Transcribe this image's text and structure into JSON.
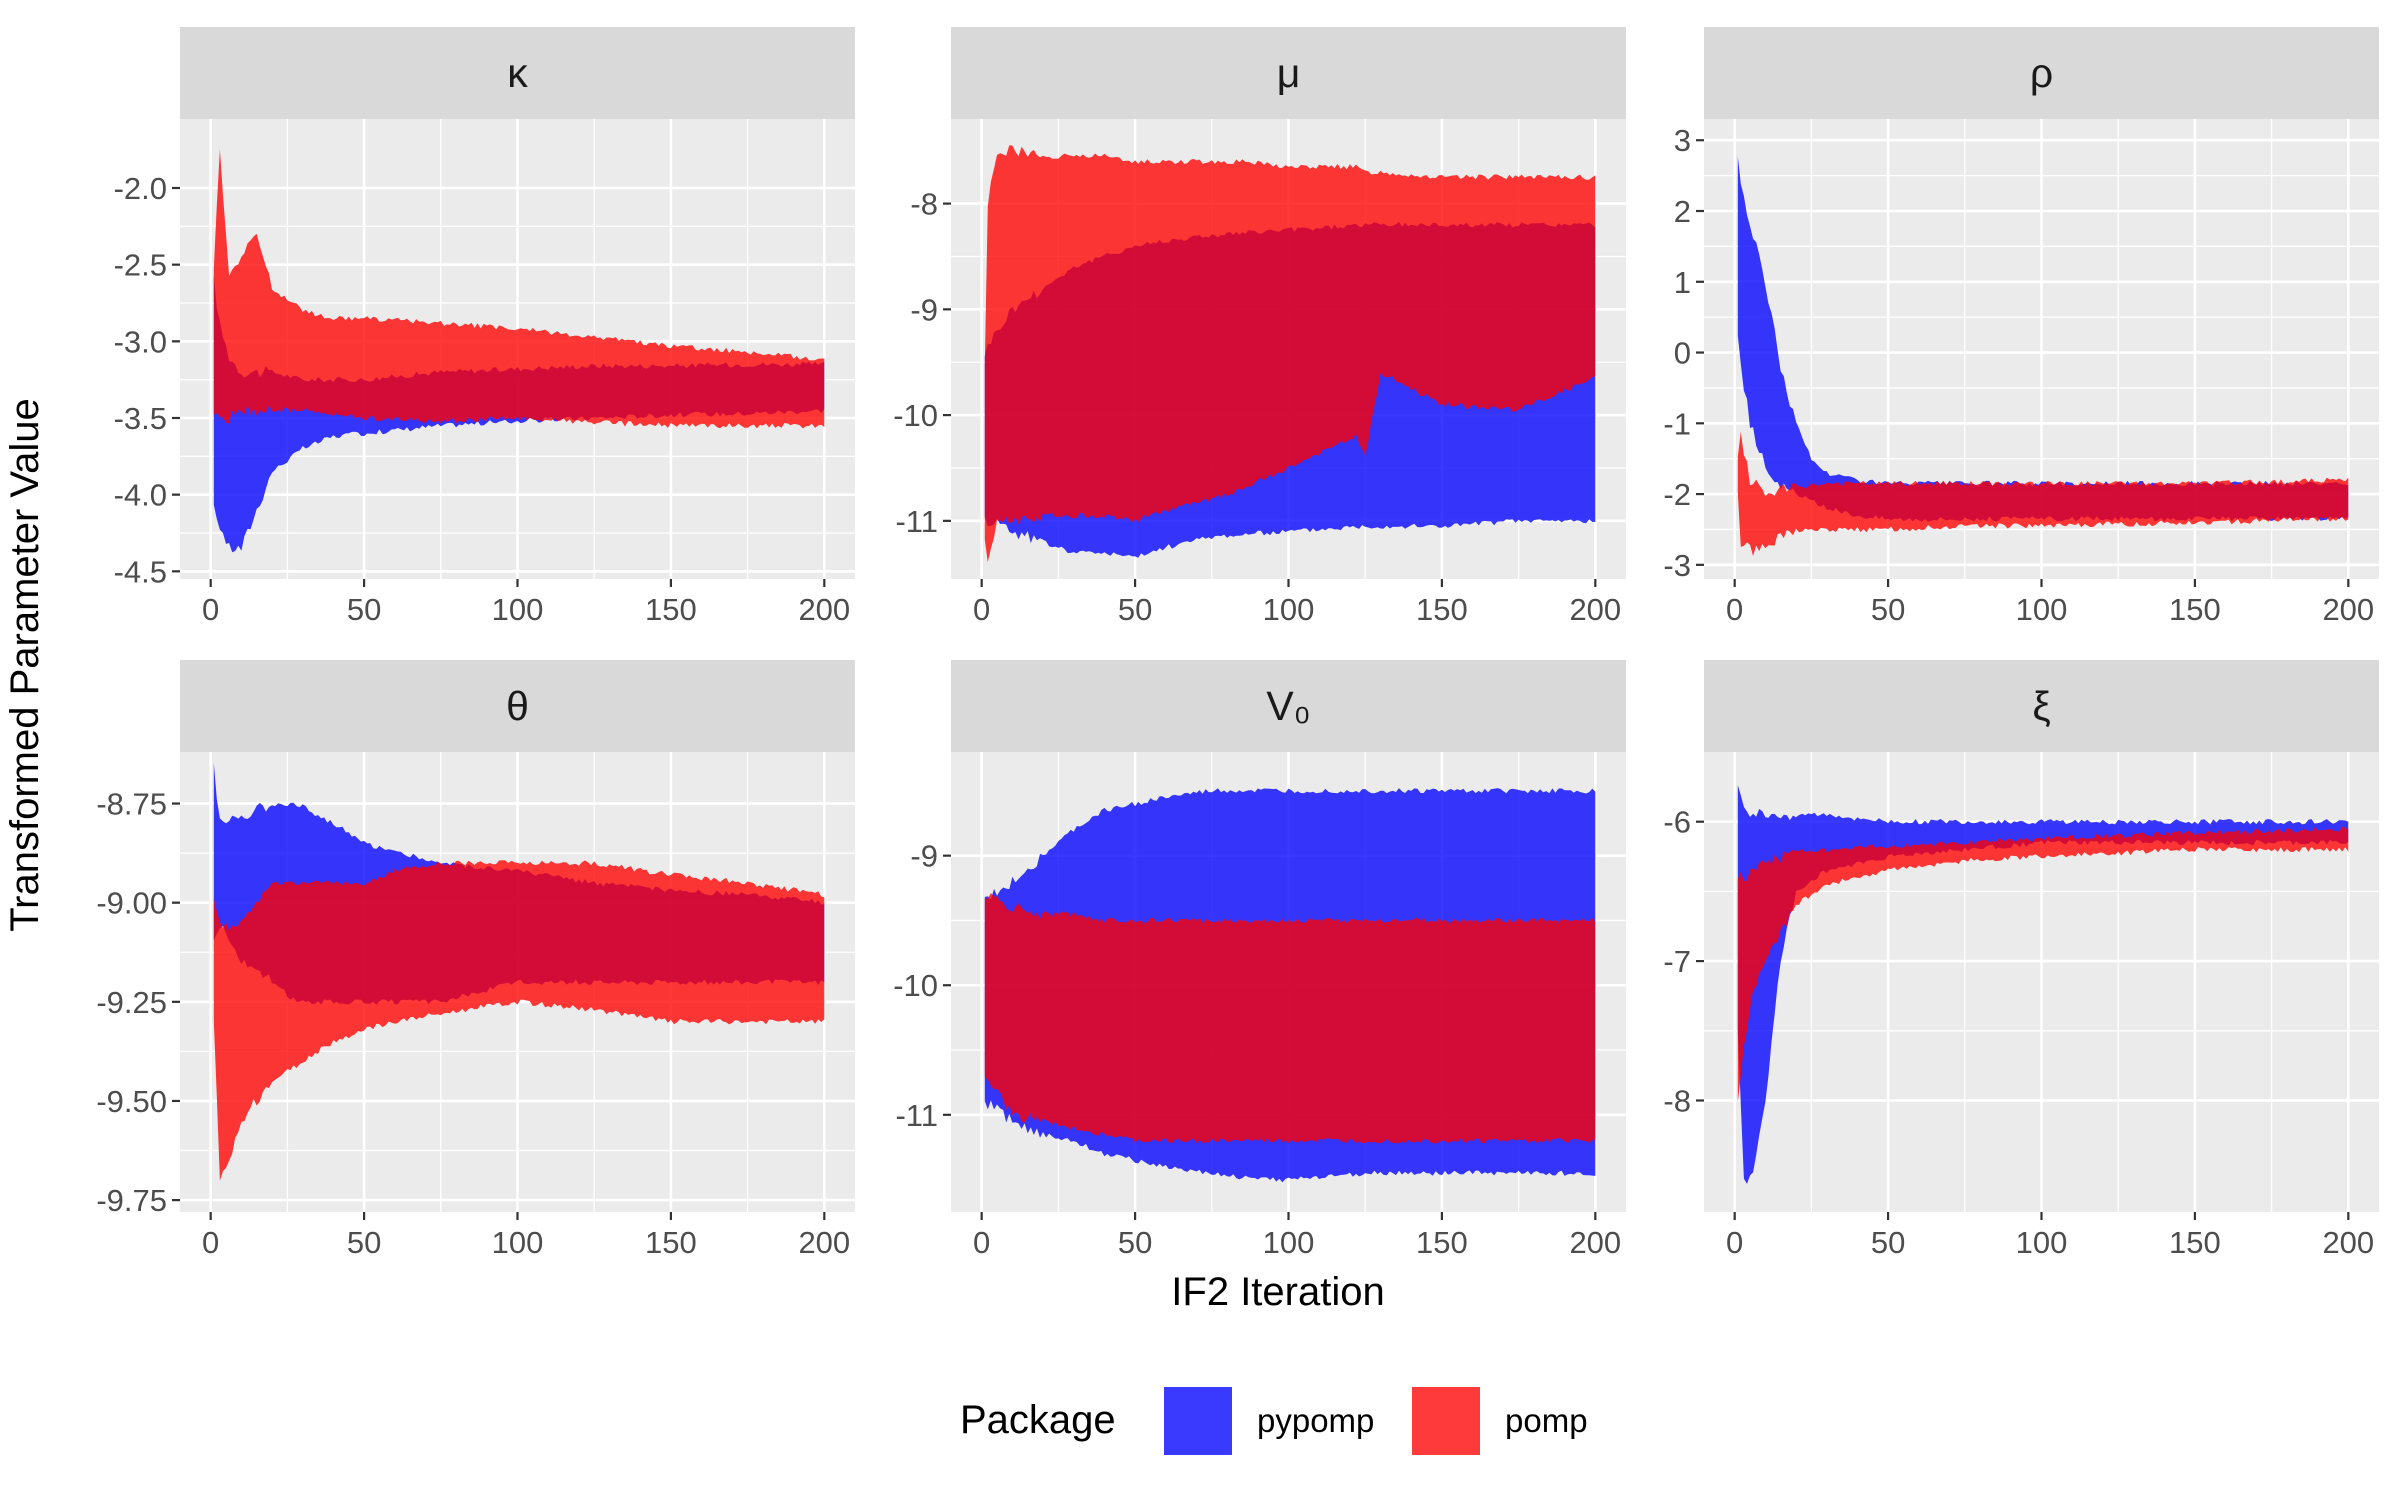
{
  "chart_data": {
    "type": "area",
    "xlabel": "IF2 Iteration",
    "ylabel": "Transformed Parameter Value",
    "legend": {
      "title": "Package",
      "position": "bottom",
      "entries": [
        {
          "label": "pypomp",
          "color": "#0000ff"
        },
        {
          "label": "pomp",
          "color": "#ff0000"
        }
      ]
    },
    "colors": {
      "pypomp": "#2626ff",
      "pomp": "#ff2626",
      "overlap": "#ad125c"
    },
    "grid": true,
    "panels": [
      {
        "strip": "κ",
        "xlim": [
          -10,
          210
        ],
        "ylim": [
          -4.55,
          -1.55
        ],
        "xticks": [
          0,
          50,
          100,
          150,
          200
        ],
        "xtick_labels": [
          "0",
          "50",
          "100",
          "150",
          "200"
        ],
        "yticks": [
          -4.5,
          -4.0,
          -3.5,
          -3.0,
          -2.5,
          -2.0
        ],
        "ytick_labels": [
          "-4.5",
          "-4.0",
          "-3.5",
          "-3.0",
          "-2.5",
          "-2.0"
        ],
        "series": [
          {
            "name": "pypomp",
            "x": [
              1,
              3,
              6,
              10,
              15,
              20,
              30,
              40,
              50,
              75,
              100,
              125,
              150,
              175,
              200
            ],
            "lower": [
              -4.1,
              -4.2,
              -4.35,
              -4.35,
              -4.1,
              -3.85,
              -3.7,
              -3.62,
              -3.6,
              -3.55,
              -3.52,
              -3.5,
              -3.48,
              -3.47,
              -3.45
            ],
            "upper": [
              -2.6,
              -2.9,
              -3.1,
              -3.2,
              -3.2,
              -3.2,
              -3.25,
              -3.25,
              -3.25,
              -3.2,
              -3.18,
              -3.16,
              -3.16,
              -3.15,
              -3.15
            ]
          },
          {
            "name": "pomp",
            "x": [
              1,
              3,
              6,
              10,
              15,
              20,
              30,
              40,
              50,
              75,
              100,
              125,
              150,
              175,
              200
            ],
            "lower": [
              -3.5,
              -3.5,
              -3.5,
              -3.45,
              -3.45,
              -3.45,
              -3.45,
              -3.48,
              -3.5,
              -3.52,
              -3.5,
              -3.53,
              -3.55,
              -3.55,
              -3.55
            ],
            "upper": [
              -2.5,
              -1.75,
              -2.55,
              -2.45,
              -2.3,
              -2.65,
              -2.8,
              -2.85,
              -2.85,
              -2.88,
              -2.92,
              -2.97,
              -3.03,
              -3.07,
              -3.12
            ]
          }
        ]
      },
      {
        "strip": "μ",
        "xlim": [
          -10,
          210
        ],
        "ylim": [
          -11.55,
          -7.2
        ],
        "xticks": [
          0,
          50,
          100,
          150,
          200
        ],
        "xtick_labels": [
          "0",
          "50",
          "100",
          "150",
          "200"
        ],
        "yticks": [
          -11,
          -10,
          -9,
          -8
        ],
        "ytick_labels": [
          "-11",
          "-10",
          "-9",
          "-8"
        ],
        "series": [
          {
            "name": "pypomp",
            "x": [
              1,
              5,
              10,
              20,
              30,
              40,
              50,
              60,
              75,
              100,
              125,
              150,
              175,
              200
            ],
            "lower": [
              -11.0,
              -11.0,
              -11.1,
              -11.2,
              -11.3,
              -11.3,
              -11.35,
              -11.25,
              -11.15,
              -11.1,
              -11.05,
              -11.05,
              -11.0,
              -11.0
            ],
            "upper": [
              -9.4,
              -9.2,
              -9.0,
              -8.8,
              -8.6,
              -8.5,
              -8.4,
              -8.35,
              -8.3,
              -8.25,
              -8.2,
              -8.2,
              -8.2,
              -8.2
            ]
          },
          {
            "name": "pomp",
            "x": [
              1,
              2,
              5,
              10,
              20,
              30,
              40,
              50,
              60,
              75,
              85,
              100,
              115,
              122,
              125,
              130,
              150,
              175,
              200
            ],
            "lower": [
              -11.2,
              -11.4,
              -11.0,
              -11.0,
              -10.95,
              -10.95,
              -10.95,
              -11.0,
              -10.9,
              -10.8,
              -10.7,
              -10.5,
              -10.3,
              -10.2,
              -10.4,
              -9.6,
              -9.9,
              -9.95,
              -9.65
            ],
            "upper": [
              -9.5,
              -8.0,
              -7.5,
              -7.5,
              -7.55,
              -7.55,
              -7.55,
              -7.6,
              -7.6,
              -7.6,
              -7.6,
              -7.65,
              -7.65,
              -7.65,
              -7.7,
              -7.7,
              -7.75,
              -7.75,
              -7.75
            ]
          }
        ]
      },
      {
        "strip": "ρ",
        "xlim": [
          -10,
          210
        ],
        "ylim": [
          -3.2,
          3.3
        ],
        "xticks": [
          0,
          50,
          100,
          150,
          200
        ],
        "xtick_labels": [
          "0",
          "50",
          "100",
          "150",
          "200"
        ],
        "yticks": [
          -3,
          -2,
          -1,
          0,
          1,
          2,
          3
        ],
        "ytick_labels": [
          "-3",
          "-2",
          "-1",
          "0",
          "1",
          "2",
          "3"
        ],
        "series": [
          {
            "name": "pypomp",
            "x": [
              1,
              2,
              5,
              10,
              15,
              20,
              25,
              30,
              40,
              50,
              75,
              100,
              150,
              200
            ],
            "lower": [
              0.2,
              -0.2,
              -1.0,
              -1.6,
              -1.9,
              -2.0,
              -2.1,
              -2.2,
              -2.3,
              -2.35,
              -2.35,
              -2.35,
              -2.35,
              -2.35
            ],
            "upper": [
              2.8,
              2.4,
              1.8,
              1.0,
              -0.2,
              -1.0,
              -1.5,
              -1.7,
              -1.8,
              -1.85,
              -1.85,
              -1.85,
              -1.85,
              -1.85
            ]
          },
          {
            "name": "pomp",
            "x": [
              1,
              2,
              5,
              10,
              15,
              20,
              30,
              40,
              50,
              75,
              100,
              150,
              200
            ],
            "lower": [
              -2.0,
              -2.7,
              -2.8,
              -2.75,
              -2.6,
              -2.5,
              -2.5,
              -2.5,
              -2.5,
              -2.45,
              -2.45,
              -2.4,
              -2.35
            ],
            "upper": [
              -1.5,
              -1.2,
              -1.8,
              -2.0,
              -1.95,
              -1.9,
              -1.85,
              -1.85,
              -1.85,
              -1.85,
              -1.85,
              -1.85,
              -1.8
            ]
          }
        ]
      },
      {
        "strip": "θ",
        "xlim": [
          -10,
          210
        ],
        "ylim": [
          -9.78,
          -8.62
        ],
        "xticks": [
          0,
          50,
          100,
          150,
          200
        ],
        "xtick_labels": [
          "0",
          "50",
          "100",
          "150",
          "200"
        ],
        "yticks": [
          -9.75,
          -9.5,
          -9.25,
          -9.0,
          -8.75
        ],
        "ytick_labels": [
          "-9.75",
          "-9.50",
          "-9.25",
          "-9.00",
          "-8.75"
        ],
        "series": [
          {
            "name": "pypomp",
            "x": [
              1,
              3,
              10,
              20,
              28,
              40,
              50,
              60,
              75,
              100,
              125,
              150,
              175,
              200
            ],
            "lower": [
              -9.1,
              -9.05,
              -9.15,
              -9.2,
              -9.25,
              -9.25,
              -9.25,
              -9.25,
              -9.25,
              -9.2,
              -9.2,
              -9.2,
              -9.2,
              -9.2
            ],
            "upper": [
              -8.65,
              -8.8,
              -8.78,
              -8.75,
              -8.75,
              -8.8,
              -8.85,
              -8.87,
              -8.9,
              -8.92,
              -8.95,
              -8.97,
              -8.98,
              -9.0
            ]
          },
          {
            "name": "pomp",
            "x": [
              1,
              3,
              6,
              10,
              15,
              20,
              30,
              40,
              50,
              60,
              75,
              100,
              125,
              150,
              175,
              200
            ],
            "lower": [
              -9.3,
              -9.7,
              -9.65,
              -9.55,
              -9.5,
              -9.45,
              -9.4,
              -9.35,
              -9.32,
              -9.3,
              -9.28,
              -9.25,
              -9.27,
              -9.3,
              -9.3,
              -9.3
            ],
            "upper": [
              -9.0,
              -9.05,
              -9.07,
              -9.05,
              -9.0,
              -8.95,
              -8.95,
              -8.95,
              -8.95,
              -8.92,
              -8.9,
              -8.9,
              -8.9,
              -8.93,
              -8.95,
              -8.98
            ]
          }
        ]
      },
      {
        "strip": "V₀",
        "xlim": [
          -10,
          210
        ],
        "ylim": [
          -11.75,
          -8.2
        ],
        "xticks": [
          0,
          50,
          100,
          150,
          200
        ],
        "xtick_labels": [
          "0",
          "50",
          "100",
          "150",
          "200"
        ],
        "yticks": [
          -11,
          -10,
          -9
        ],
        "ytick_labels": [
          "-11",
          "-10",
          "-9"
        ],
        "series": [
          {
            "name": "pypomp",
            "x": [
              1,
              10,
              20,
              30,
              40,
              50,
              60,
              75,
              90,
              100,
              125,
              150,
              175,
              200
            ],
            "lower": [
              -10.9,
              -11.05,
              -11.15,
              -11.2,
              -11.3,
              -11.35,
              -11.4,
              -11.45,
              -11.5,
              -11.5,
              -11.45,
              -11.45,
              -11.45,
              -11.45
            ],
            "upper": [
              -9.35,
              -9.2,
              -9.0,
              -8.8,
              -8.65,
              -8.6,
              -8.55,
              -8.5,
              -8.5,
              -8.5,
              -8.5,
              -8.5,
              -8.5,
              -8.5
            ]
          },
          {
            "name": "pomp",
            "x": [
              1,
              10,
              20,
              30,
              40,
              50,
              60,
              75,
              100,
              125,
              150,
              175,
              200
            ],
            "lower": [
              -10.7,
              -11.0,
              -11.05,
              -11.1,
              -11.15,
              -11.2,
              -11.2,
              -11.2,
              -11.2,
              -11.2,
              -11.2,
              -11.2,
              -11.2
            ],
            "upper": [
              -9.3,
              -9.4,
              -9.45,
              -9.45,
              -9.5,
              -9.5,
              -9.5,
              -9.5,
              -9.5,
              -9.5,
              -9.5,
              -9.5,
              -9.5
            ]
          }
        ]
      },
      {
        "strip": "ξ",
        "xlim": [
          -10,
          210
        ],
        "ylim": [
          -8.8,
          -5.5
        ],
        "xticks": [
          0,
          50,
          100,
          150,
          200
        ],
        "xtick_labels": [
          "0",
          "50",
          "100",
          "150",
          "200"
        ],
        "yticks": [
          -8,
          -7,
          -6
        ],
        "ytick_labels": [
          "-8",
          "-7",
          "-6"
        ],
        "series": [
          {
            "name": "pypomp",
            "x": [
              1,
              3,
              6,
              10,
              15,
              20,
              30,
              50,
              100,
              150,
              200
            ],
            "lower": [
              -7.5,
              -8.6,
              -8.5,
              -8.0,
              -7.0,
              -6.5,
              -6.35,
              -6.25,
              -6.15,
              -6.15,
              -6.15
            ],
            "upper": [
              -5.7,
              -5.9,
              -5.95,
              -5.95,
              -5.95,
              -5.95,
              -5.95,
              -6.0,
              -6.0,
              -6.0,
              -6.0
            ]
          },
          {
            "name": "pomp",
            "x": [
              1,
              3,
              6,
              10,
              15,
              20,
              30,
              50,
              75,
              100,
              150,
              200
            ],
            "lower": [
              -8.0,
              -7.6,
              -7.2,
              -7.0,
              -6.8,
              -6.6,
              -6.45,
              -6.35,
              -6.28,
              -6.25,
              -6.2,
              -6.2
            ],
            "upper": [
              -6.4,
              -6.4,
              -6.35,
              -6.3,
              -6.25,
              -6.2,
              -6.2,
              -6.18,
              -6.15,
              -6.12,
              -6.08,
              -6.05
            ]
          }
        ]
      }
    ]
  }
}
